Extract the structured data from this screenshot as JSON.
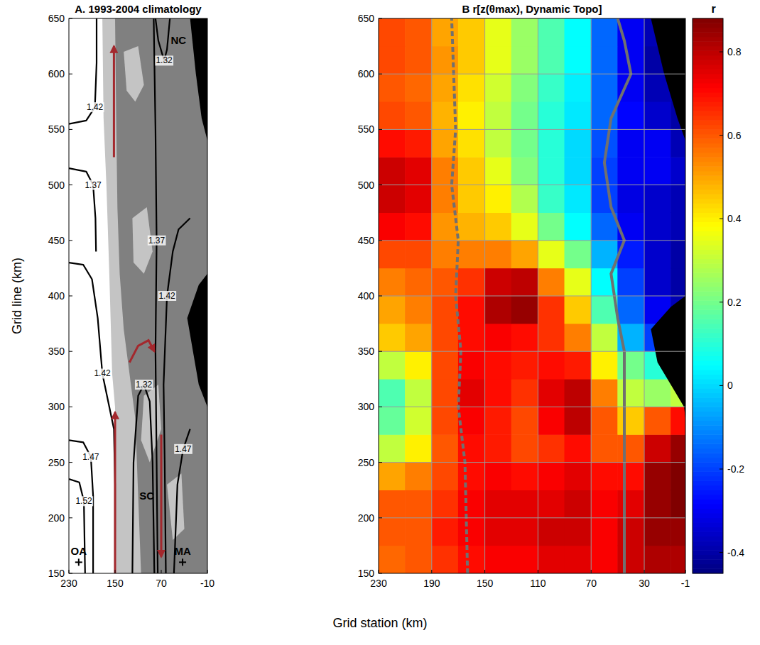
{
  "figure": {
    "xlabel": "Grid station (km)"
  },
  "chart_data": [
    {
      "type": "contour",
      "title": "A. 1993-2004 climatology",
      "ylabel": "Grid line (km)",
      "xlim": [
        230,
        -10
      ],
      "ylim": [
        150,
        650
      ],
      "xticks": [
        230,
        150,
        70,
        -10
      ],
      "yticks": [
        150,
        200,
        250,
        300,
        350,
        400,
        450,
        500,
        550,
        600,
        650
      ],
      "grid": false,
      "shading": [
        {
          "color": "#c4c4c4",
          "x": [
            172,
            170,
            165,
            160,
            155,
            150,
            148,
            -10,
            -10
          ],
          "y": [
            650,
            560,
            500,
            420,
            330,
            300,
            150,
            150,
            650
          ]
        },
        {
          "color": "#808080",
          "x": [
            150,
            148,
            146,
            142,
            135,
            125,
            115,
            105,
            -10,
            -10
          ],
          "y": [
            650,
            560,
            480,
            420,
            370,
            330,
            290,
            150,
            150,
            650
          ]
        },
        {
          "color": "#c4c4c4",
          "x": [
            135,
            110,
            100,
            115,
            130
          ],
          "y": [
            620,
            625,
            590,
            575,
            585
          ]
        },
        {
          "color": "#c4c4c4",
          "x": [
            120,
            95,
            85,
            100,
            118
          ],
          "y": [
            470,
            480,
            440,
            420,
            430
          ]
        },
        {
          "color": "#c4c4c4",
          "x": [
            100,
            75,
            70,
            90,
            105
          ],
          "y": [
            310,
            320,
            280,
            250,
            270
          ]
        },
        {
          "color": "#c4c4c4",
          "x": [
            60,
            35,
            30,
            50
          ],
          "y": [
            230,
            240,
            190,
            180
          ]
        },
        {
          "color": "#000000",
          "x": [
            25,
            15,
            5,
            -10,
            -10,
            5
          ],
          "y": [
            380,
            350,
            320,
            300,
            420,
            410
          ]
        },
        {
          "color": "#000000",
          "x": [
            20,
            10,
            0,
            -10,
            -10
          ],
          "y": [
            650,
            600,
            560,
            540,
            650
          ]
        }
      ],
      "contours": [
        {
          "level": 1.42,
          "x": [
            230,
            200,
            185,
            182,
            182
          ],
          "y": [
            555,
            558,
            570,
            610,
            650
          ]
        },
        {
          "level": 1.37,
          "x": [
            230,
            200,
            188,
            184,
            183
          ],
          "y": [
            515,
            512,
            500,
            470,
            440
          ]
        },
        {
          "level": 1.42,
          "x": [
            230,
            205,
            190,
            180,
            172,
            160,
            152,
            150,
            150
          ],
          "y": [
            430,
            428,
            415,
            380,
            330,
            300,
            280,
            230,
            150
          ]
        },
        {
          "level": 1.47,
          "x": [
            230,
            205,
            192,
            188,
            188
          ],
          "y": [
            270,
            268,
            255,
            220,
            150
          ]
        },
        {
          "level": 1.52,
          "x": [
            230,
            212,
            204,
            202
          ],
          "y": [
            235,
            232,
            215,
            150
          ]
        },
        {
          "level": 1.32,
          "x": [
            120,
            118,
            110,
            100,
            90,
            85,
            82
          ],
          "y": [
            150,
            250,
            310,
            320,
            305,
            250,
            150
          ]
        },
        {
          "level": 1.37,
          "x": [
            76,
            78,
            80,
            78,
            80,
            83
          ],
          "y": [
            150,
            250,
            350,
            450,
            550,
            650
          ]
        },
        {
          "level": 1.42,
          "x": [
            62,
            64,
            66,
            60,
            50,
            40,
            20
          ],
          "y": [
            150,
            250,
            320,
            400,
            440,
            460,
            470
          ]
        },
        {
          "level": 1.47,
          "x": [
            48,
            42,
            32,
            20
          ],
          "y": [
            150,
            230,
            262,
            280
          ]
        },
        {
          "level": 1.32,
          "x": [
            80,
            75,
            65,
            60,
            55
          ],
          "y": [
            650,
            630,
            612,
            622,
            650
          ]
        }
      ],
      "arrows": [
        {
          "x": [
            152,
            152
          ],
          "y": [
            525,
            625
          ]
        },
        {
          "x": [
            150,
            150
          ],
          "y": [
            150,
            295
          ]
        },
        {
          "x": [
            70,
            70
          ],
          "y": [
            275,
            165
          ]
        },
        {
          "x": [
            125,
            110,
            92,
            82
          ],
          "y": [
            340,
            355,
            360,
            350
          ]
        }
      ],
      "color": "#a3282d",
      "labels": [
        {
          "text": "NC",
          "x": 40,
          "y": 630
        },
        {
          "text": "SC",
          "x": 95,
          "y": 220
        },
        {
          "text": "OA",
          "x": 213,
          "y": 160,
          "marker": "plus"
        },
        {
          "text": "MA",
          "x": 33,
          "y": 160,
          "marker": "plus"
        }
      ]
    },
    {
      "type": "heatmap",
      "title": "B r[z(θmax), Dynamic Topo]",
      "xlim": [
        230,
        -1
      ],
      "ylim": [
        150,
        650
      ],
      "xticks": [
        230,
        190,
        150,
        110,
        70,
        30,
        -1
      ],
      "yticks": [
        150,
        200,
        250,
        300,
        350,
        400,
        450,
        500,
        550,
        600,
        650
      ],
      "grid": true,
      "x": [
        220,
        200,
        180,
        160,
        140,
        120,
        100,
        80,
        60,
        40,
        20,
        0
      ],
      "y": [
        162.5,
        187.5,
        212.5,
        237.5,
        262.5,
        287.5,
        312.5,
        337.5,
        362.5,
        387.5,
        412.5,
        437.5,
        462.5,
        487.5,
        512.5,
        537.5,
        562.5,
        587.5,
        612.5,
        637.5
      ],
      "cells": [
        [
          0.58,
          0.6,
          0.65,
          0.7,
          0.72,
          0.72,
          0.75,
          0.75,
          0.72,
          0.78,
          0.82,
          0.82
        ],
        [
          0.6,
          0.6,
          0.68,
          0.72,
          0.75,
          0.75,
          0.78,
          0.78,
          0.72,
          0.78,
          0.85,
          0.85
        ],
        [
          0.6,
          0.6,
          0.65,
          0.72,
          0.75,
          0.75,
          0.75,
          0.78,
          0.72,
          0.75,
          0.85,
          0.88
        ],
        [
          0.5,
          0.55,
          0.62,
          0.7,
          0.72,
          0.7,
          0.72,
          0.75,
          0.7,
          0.7,
          0.85,
          0.88
        ],
        [
          0.3,
          0.4,
          0.6,
          0.7,
          0.68,
          0.62,
          0.65,
          0.7,
          0.6,
          0.6,
          0.78,
          0.85
        ],
        [
          0.18,
          0.32,
          0.62,
          0.72,
          0.68,
          0.62,
          0.72,
          0.8,
          0.6,
          0.45,
          0.6,
          0.7
        ],
        [
          0.15,
          0.3,
          0.62,
          0.75,
          0.7,
          0.65,
          0.75,
          0.8,
          0.55,
          0.3,
          0.25,
          0.3
        ],
        [
          0.3,
          0.4,
          0.62,
          0.72,
          0.7,
          0.68,
          0.7,
          0.68,
          0.4,
          0.2,
          0.1,
          0
        ],
        [
          0.45,
          0.5,
          0.62,
          0.7,
          0.72,
          0.7,
          0.65,
          0.55,
          0.3,
          -0.05,
          -0.2,
          -0.3
        ],
        [
          0.5,
          0.55,
          0.62,
          0.7,
          0.82,
          0.85,
          0.65,
          0.45,
          0.15,
          -0.15,
          -0.3,
          -0.38
        ],
        [
          0.55,
          0.58,
          0.6,
          0.65,
          0.78,
          0.8,
          0.55,
          0.35,
          0.05,
          -0.2,
          -0.35,
          -0.4
        ],
        [
          0.62,
          0.62,
          0.55,
          0.55,
          0.55,
          0.5,
          0.35,
          0.2,
          -0.05,
          -0.25,
          -0.35,
          -0.4
        ],
        [
          0.72,
          0.7,
          0.52,
          0.48,
          0.45,
          0.35,
          0.2,
          0.05,
          -0.15,
          -0.3,
          -0.35,
          -0.38
        ],
        [
          0.78,
          0.75,
          0.55,
          0.45,
          0.4,
          0.28,
          0.12,
          0.02,
          -0.2,
          -0.32,
          -0.35,
          -0.38
        ],
        [
          0.78,
          0.75,
          0.55,
          0.45,
          0.35,
          0.22,
          0.1,
          0,
          -0.2,
          -0.3,
          -0.3,
          -0.35
        ],
        [
          0.7,
          0.68,
          0.5,
          0.42,
          0.3,
          0.2,
          0.1,
          0,
          -0.18,
          -0.3,
          -0.3,
          -0.38
        ],
        [
          0.62,
          0.6,
          0.48,
          0.4,
          0.3,
          0.2,
          0.1,
          0.02,
          -0.15,
          -0.28,
          -0.35,
          -0.4
        ],
        [
          0.6,
          0.58,
          0.5,
          0.42,
          0.32,
          0.22,
          0.12,
          0.03,
          -0.15,
          -0.3,
          -0.38,
          -0.4
        ],
        [
          0.62,
          0.6,
          0.52,
          0.45,
          0.35,
          0.25,
          0.15,
          0.05,
          -0.15,
          -0.3,
          -0.4,
          -0.42
        ],
        [
          0.62,
          0.6,
          0.5,
          0.45,
          0.35,
          0.25,
          0.15,
          0.05,
          -0.15,
          -0.3,
          -0.38,
          -0.4
        ]
      ],
      "clim": [
        -0.45,
        0.88
      ],
      "cticks": [
        -0.4,
        -0.2,
        0,
        0.2,
        0.4,
        0.6,
        0.8
      ],
      "colorbar_label": "r",
      "shading": [
        {
          "color": "#000000",
          "x": [
            20,
            10,
            0,
            -1,
            -1,
            10,
            25
          ],
          "y": [
            340,
            320,
            300,
            290,
            400,
            390,
            370
          ]
        },
        {
          "color": "#000000",
          "x": [
            25,
            15,
            5,
            -1,
            -1
          ],
          "y": [
            650,
            600,
            560,
            540,
            650
          ]
        }
      ],
      "lines": [
        {
          "color": "#707070",
          "line_style": "dashed",
          "x": [
            163,
            165,
            170,
            168,
            172,
            170,
            175,
            172,
            175
          ],
          "y": [
            150,
            250,
            300,
            350,
            400,
            450,
            500,
            550,
            650
          ]
        },
        {
          "color": "#707070",
          "line_style": "solid",
          "x": [
            45,
            45,
            45,
            50,
            55,
            45,
            55,
            60,
            55,
            40,
            45,
            50
          ],
          "y": [
            150,
            250,
            350,
            380,
            420,
            450,
            480,
            520,
            560,
            600,
            630,
            650
          ]
        }
      ]
    }
  ]
}
